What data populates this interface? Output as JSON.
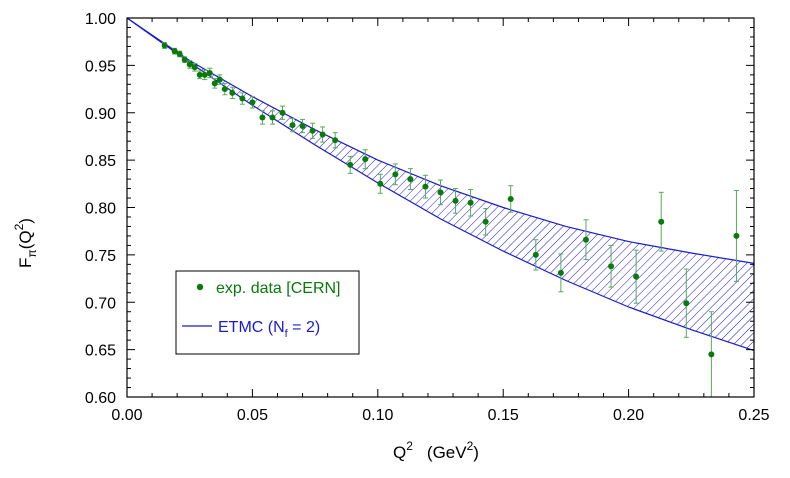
{
  "chart_data": {
    "type": "scatter",
    "xlabel": "Q",
    "xlabel_sup": "2",
    "xunit_open": "(GeV",
    "xunit_sup": "2",
    "xunit_close": ")",
    "ylabel": "F",
    "ylabel_sub": "π",
    "ylabel_arg_open": "(Q",
    "ylabel_arg_sup": "2",
    "ylabel_arg_close": ")",
    "xlim": [
      0.0,
      0.25
    ],
    "ylim": [
      0.6,
      1.0
    ],
    "xticks": [
      "0.00",
      "0.05",
      "0.10",
      "0.15",
      "0.20",
      "0.25"
    ],
    "yticks": [
      "0.60",
      "0.65",
      "0.70",
      "0.75",
      "0.80",
      "0.85",
      "0.90",
      "0.95",
      "1.00"
    ],
    "grid": false,
    "legend_position": "bottom-left",
    "colors": {
      "data": "#0a7a0a",
      "band": "#1a1ad0"
    },
    "series": [
      {
        "name": "exp. data [CERN]",
        "kind": "points",
        "x": [
          0.015,
          0.019,
          0.021,
          0.023,
          0.025,
          0.027,
          0.029,
          0.031,
          0.033,
          0.035,
          0.037,
          0.039,
          0.042,
          0.046,
          0.05,
          0.054,
          0.058,
          0.062,
          0.066,
          0.07,
          0.074,
          0.078,
          0.083,
          0.089,
          0.095,
          0.101,
          0.107,
          0.113,
          0.119,
          0.125,
          0.131,
          0.137,
          0.143,
          0.153,
          0.163,
          0.173,
          0.183,
          0.193,
          0.203,
          0.213,
          0.223,
          0.233,
          0.243
        ],
        "y": [
          0.971,
          0.965,
          0.962,
          0.956,
          0.951,
          0.948,
          0.94,
          0.94,
          0.942,
          0.931,
          0.935,
          0.925,
          0.921,
          0.915,
          0.911,
          0.895,
          0.895,
          0.9,
          0.887,
          0.886,
          0.881,
          0.877,
          0.871,
          0.845,
          0.851,
          0.825,
          0.835,
          0.83,
          0.822,
          0.816,
          0.807,
          0.805,
          0.785,
          0.809,
          0.75,
          0.731,
          0.766,
          0.738,
          0.727,
          0.785,
          0.699,
          0.645,
          0.77
        ],
        "yerr": [
          0.003,
          0.003,
          0.003,
          0.003,
          0.004,
          0.004,
          0.004,
          0.005,
          0.005,
          0.005,
          0.005,
          0.006,
          0.006,
          0.006,
          0.006,
          0.007,
          0.007,
          0.007,
          0.007,
          0.007,
          0.008,
          0.008,
          0.008,
          0.009,
          0.01,
          0.01,
          0.011,
          0.011,
          0.012,
          0.013,
          0.013,
          0.014,
          0.014,
          0.014,
          0.016,
          0.02,
          0.021,
          0.022,
          0.028,
          0.031,
          0.036,
          0.045,
          0.048
        ]
      },
      {
        "name": "ETMC (N",
        "name_sub": "f",
        "name_tail": " = 2)",
        "kind": "band",
        "x": [
          0.0,
          0.025,
          0.05,
          0.075,
          0.1,
          0.125,
          0.15,
          0.175,
          0.2,
          0.225,
          0.25
        ],
        "upper": [
          1.0,
          0.955,
          0.917,
          0.882,
          0.85,
          0.823,
          0.8,
          0.78,
          0.764,
          0.752,
          0.741
        ],
        "lower": [
          1.0,
          0.953,
          0.908,
          0.866,
          0.826,
          0.788,
          0.754,
          0.723,
          0.695,
          0.671,
          0.649
        ]
      }
    ]
  }
}
